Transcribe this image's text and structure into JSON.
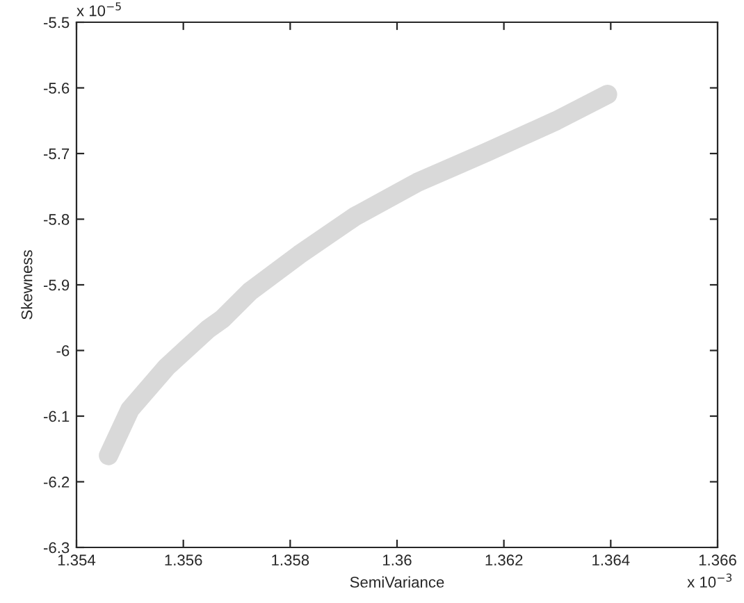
{
  "chart_data": {
    "type": "line",
    "xlabel": "SemiVariance",
    "ylabel": "Skewness",
    "annotations": [
      "x 10$^{−3}$",
      "x 10$^{−5}$"
    ],
    "x": [
      1.3546,
      1.355,
      1.35569,
      1.35647,
      1.35673,
      1.35725,
      1.35817,
      1.35921,
      1.36038,
      1.36168,
      1.36298,
      1.36394
    ],
    "series": [
      {
        "color": "#d9d9d9",
        "values": [
          -6.16,
          -6.09,
          -6.025,
          -5.967,
          -5.952,
          -5.91,
          -5.854,
          -5.796,
          -5.744,
          -5.698,
          -5.65,
          -5.61
        ]
      }
    ],
    "xlim": [
      1.354,
      1.366
    ],
    "xticks": [
      1.354,
      1.356,
      1.358,
      1.36,
      1.362,
      1.364,
      1.366
    ],
    "ylim": [
      -6.3,
      -5.5
    ],
    "yticks": [
      -6.3,
      -6.2,
      -6.1,
      -6,
      -5.9,
      -5.8,
      -5.7,
      -5.6,
      -5.5
    ],
    "grid": false,
    "marker": "none",
    "line_style": "solid"
  }
}
